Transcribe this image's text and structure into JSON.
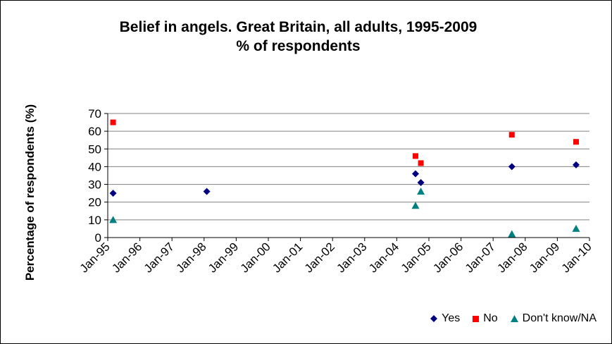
{
  "chart_data": {
    "type": "scatter",
    "title": "Belief in angels. Great Britain, all adults, 1995-2009",
    "subtitle": "%  of respondents",
    "ylabel": "Percentage of respondents (%)",
    "xlabel": "",
    "ylim": [
      0,
      70
    ],
    "yticks": [
      0,
      10,
      20,
      30,
      40,
      50,
      60,
      70
    ],
    "xlim": [
      "1995-01",
      "2010-01"
    ],
    "xtick_labels": [
      "Jan-95",
      "Jan-96",
      "Jan-97",
      "Jan-98",
      "Jan-99",
      "Jan-00",
      "Jan-01",
      "Jan-02",
      "Jan-03",
      "Jan-04",
      "Jan-05",
      "Jan-06",
      "Jan-07",
      "Jan-08",
      "Jan-09",
      "Jan-10"
    ],
    "grid": "horizontal",
    "legend_position": "bottom-right",
    "series": [
      {
        "name": "Yes",
        "marker": "diamond",
        "color": "#000080",
        "points": [
          {
            "x": "1995-03",
            "y": 25
          },
          {
            "x": "1998-02",
            "y": 26
          },
          {
            "x": "2004-08",
            "y": 36
          },
          {
            "x": "2004-10",
            "y": 31
          },
          {
            "x": "2007-08",
            "y": 40
          },
          {
            "x": "2009-08",
            "y": 41
          }
        ]
      },
      {
        "name": "No",
        "marker": "square",
        "color": "#ff0000",
        "points": [
          {
            "x": "1995-03",
            "y": 65
          },
          {
            "x": "2004-08",
            "y": 46
          },
          {
            "x": "2004-10",
            "y": 42
          },
          {
            "x": "2007-08",
            "y": 58
          },
          {
            "x": "2009-08",
            "y": 54
          }
        ]
      },
      {
        "name": "Don't know/NA",
        "marker": "triangle",
        "color": "#008080",
        "points": [
          {
            "x": "1995-03",
            "y": 10
          },
          {
            "x": "2004-08",
            "y": 18
          },
          {
            "x": "2004-10",
            "y": 26
          },
          {
            "x": "2007-08",
            "y": 2
          },
          {
            "x": "2009-08",
            "y": 5
          }
        ]
      }
    ]
  }
}
